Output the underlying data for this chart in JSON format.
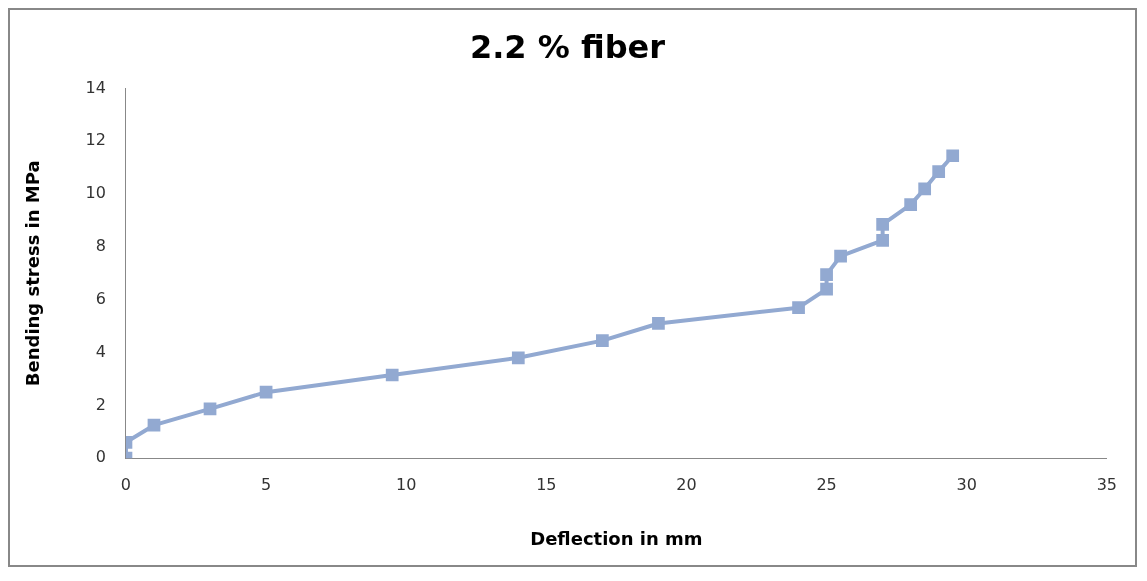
{
  "chart_data": {
    "type": "line",
    "title": "2.2 % fiber",
    "xlabel": "Deflection in mm",
    "ylabel": "Bending stress in MPa",
    "x": [
      0,
      0,
      1,
      3,
      5,
      9.5,
      14,
      17,
      19,
      24,
      25,
      25,
      25.5,
      27,
      27,
      28,
      28.5,
      29,
      29.5
    ],
    "series": [
      {
        "color": "#92a9d1",
        "values": [
          0,
          0.6,
          1.25,
          1.87,
          2.5,
          3.15,
          3.8,
          4.45,
          5.1,
          5.7,
          6.4,
          6.95,
          7.65,
          8.25,
          8.85,
          9.6,
          10.2,
          10.85,
          11.45
        ]
      }
    ],
    "xlim": [
      0,
      35
    ],
    "xticks": [
      0,
      5,
      10,
      15,
      20,
      25,
      30,
      35
    ],
    "ylim": [
      0,
      14
    ],
    "yticks": [
      0,
      2,
      4,
      6,
      8,
      10,
      12,
      14
    ],
    "grid": false,
    "legend": false,
    "marker": "square",
    "line_style": "solid"
  }
}
